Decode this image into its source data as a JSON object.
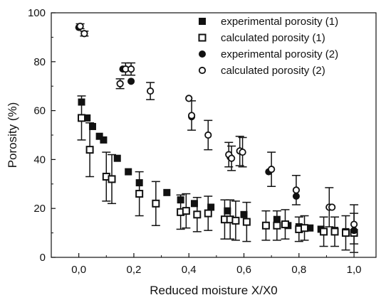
{
  "chart_data": {
    "type": "scatter",
    "xlabel": "Reduced moisture X/X0",
    "ylabel": "Porosity (%)",
    "xlim": [
      -0.1,
      1.08
    ],
    "ylim": [
      0,
      100
    ],
    "xticks": [
      0.0,
      0.2,
      0.4,
      0.6,
      0.8,
      1.0
    ],
    "xtick_labels": [
      "0,0",
      "0,2",
      "0,4",
      "0,6",
      "0,8",
      "1,0"
    ],
    "yticks": [
      0,
      20,
      40,
      60,
      80,
      100
    ],
    "ytick_labels": [
      "0",
      "20",
      "40",
      "60",
      "80",
      "100"
    ],
    "grid": false,
    "legend_position": "top-right",
    "series": [
      {
        "name": "experimental porosity (1)",
        "marker": "filled-square",
        "points": [
          {
            "x": 0.01,
            "y": 63.5
          },
          {
            "x": 0.03,
            "y": 57
          },
          {
            "x": 0.05,
            "y": 53.5
          },
          {
            "x": 0.075,
            "y": 49.5
          },
          {
            "x": 0.09,
            "y": 48
          },
          {
            "x": 0.14,
            "y": 40.5
          },
          {
            "x": 0.18,
            "y": 35
          },
          {
            "x": 0.22,
            "y": 30.5
          },
          {
            "x": 0.32,
            "y": 26.5
          },
          {
            "x": 0.37,
            "y": 23.5
          },
          {
            "x": 0.42,
            "y": 22
          },
          {
            "x": 0.48,
            "y": 20.5
          },
          {
            "x": 0.54,
            "y": 19
          },
          {
            "x": 0.6,
            "y": 17.5
          },
          {
            "x": 0.72,
            "y": 15.5
          },
          {
            "x": 0.76,
            "y": 13
          },
          {
            "x": 0.8,
            "y": 12.5
          },
          {
            "x": 0.84,
            "y": 12
          },
          {
            "x": 0.88,
            "y": 11.5
          },
          {
            "x": 0.93,
            "y": 11
          },
          {
            "x": 0.97,
            "y": 10.5
          },
          {
            "x": 1.0,
            "y": 10
          }
        ]
      },
      {
        "name": "calculated porosity (1)",
        "marker": "open-square",
        "points": [
          {
            "x": 0.01,
            "y": 57,
            "yerr": 9
          },
          {
            "x": 0.04,
            "y": 44,
            "yerr": 11
          },
          {
            "x": 0.1,
            "y": 33,
            "yerr": 10
          },
          {
            "x": 0.12,
            "y": 32,
            "yerr": 10
          },
          {
            "x": 0.22,
            "y": 26,
            "yerr": 9
          },
          {
            "x": 0.28,
            "y": 22,
            "yerr": 9
          },
          {
            "x": 0.37,
            "y": 18.5,
            "yerr": 7
          },
          {
            "x": 0.39,
            "y": 19,
            "yerr": 7
          },
          {
            "x": 0.43,
            "y": 17.5,
            "yerr": 7
          },
          {
            "x": 0.47,
            "y": 18,
            "yerr": 7
          },
          {
            "x": 0.53,
            "y": 15.5,
            "yerr": 8
          },
          {
            "x": 0.55,
            "y": 15.5,
            "yerr": 8
          },
          {
            "x": 0.57,
            "y": 15,
            "yerr": 8
          },
          {
            "x": 0.61,
            "y": 14.5,
            "yerr": 8
          },
          {
            "x": 0.68,
            "y": 13,
            "yerr": 6
          },
          {
            "x": 0.72,
            "y": 13,
            "yerr": 6
          },
          {
            "x": 0.75,
            "y": 13.5,
            "yerr": 6
          },
          {
            "x": 0.8,
            "y": 11.5,
            "yerr": 5
          },
          {
            "x": 0.82,
            "y": 12,
            "yerr": 5
          },
          {
            "x": 0.89,
            "y": 10.5,
            "yerr": 6
          },
          {
            "x": 0.93,
            "y": 10.5,
            "yerr": 6
          },
          {
            "x": 0.97,
            "y": 10,
            "yerr": 7
          },
          {
            "x": 1.0,
            "y": 10,
            "yerr": 8
          }
        ]
      },
      {
        "name": "experimental porosity (2)",
        "marker": "filled-circle",
        "points": [
          {
            "x": 0.0,
            "y": 94
          },
          {
            "x": 0.16,
            "y": 77
          },
          {
            "x": 0.19,
            "y": 72
          },
          {
            "x": 0.41,
            "y": 57.5
          },
          {
            "x": 0.55,
            "y": 41
          },
          {
            "x": 0.69,
            "y": 35
          },
          {
            "x": 0.79,
            "y": 25
          },
          {
            "x": 0.91,
            "y": 20.5
          },
          {
            "x": 1.0,
            "y": 11
          }
        ]
      },
      {
        "name": "calculated porosity (2)",
        "marker": "open-circle",
        "points": [
          {
            "x": 0.005,
            "y": 94.5,
            "yerr": 1
          },
          {
            "x": 0.02,
            "y": 91.5,
            "yerr": 1
          },
          {
            "x": 0.15,
            "y": 71,
            "yerr": 2
          },
          {
            "x": 0.17,
            "y": 77,
            "yerr": 2.5
          },
          {
            "x": 0.19,
            "y": 77,
            "yerr": 2.5
          },
          {
            "x": 0.26,
            "y": 68,
            "yerr": 3.5
          },
          {
            "x": 0.4,
            "y": 65,
            "yerr": 0
          },
          {
            "x": 0.41,
            "y": 58,
            "yerr": 6
          },
          {
            "x": 0.47,
            "y": 50,
            "yerr": 6
          },
          {
            "x": 0.545,
            "y": 42,
            "yerr": 5
          },
          {
            "x": 0.555,
            "y": 40.5,
            "yerr": 5
          },
          {
            "x": 0.585,
            "y": 43.5,
            "yerr": 6
          },
          {
            "x": 0.595,
            "y": 43,
            "yerr": 6
          },
          {
            "x": 0.7,
            "y": 36,
            "yerr": 7
          },
          {
            "x": 0.79,
            "y": 27.5,
            "yerr": 6
          },
          {
            "x": 0.91,
            "y": 20.5,
            "yerr": 8
          },
          {
            "x": 0.92,
            "y": 20.5,
            "yerr": 0
          },
          {
            "x": 1.0,
            "y": 13.5,
            "yerr": 8
          }
        ]
      }
    ],
    "colors": {
      "marker": "#111111",
      "axis": "#111111",
      "background": "#ffffff"
    }
  }
}
